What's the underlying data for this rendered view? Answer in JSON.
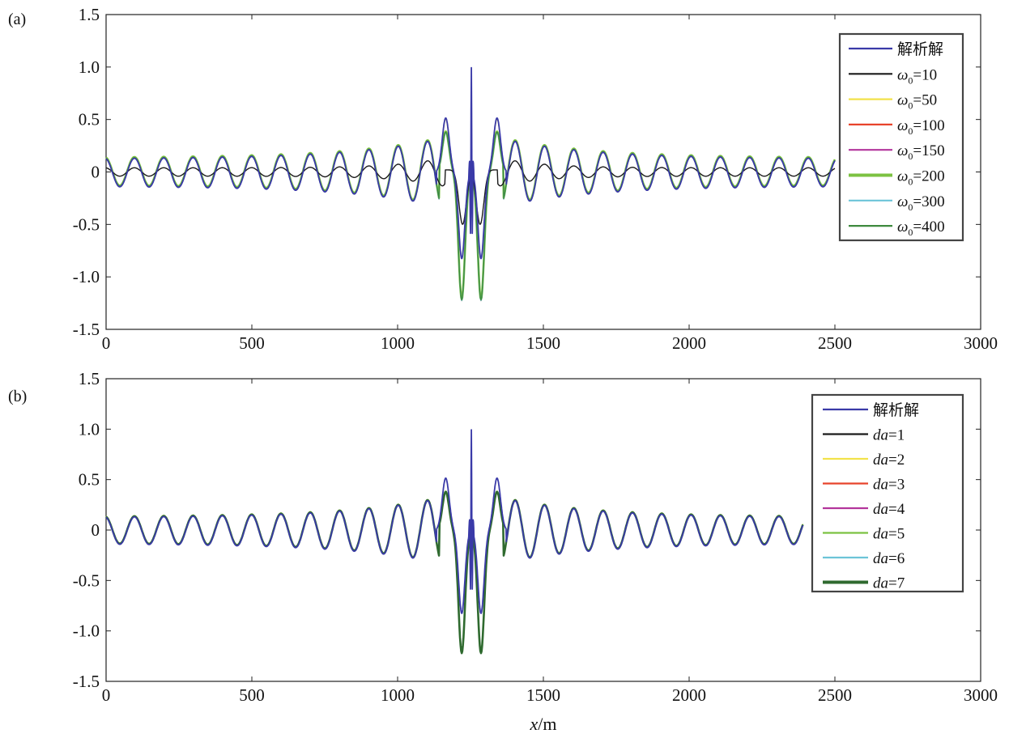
{
  "chart_data": [
    {
      "panel_label": "(a)",
      "type": "line",
      "xlim": [
        0,
        3000
      ],
      "ylim": [
        -1.5,
        1.5
      ],
      "xticks": [
        0,
        500,
        1000,
        1500,
        2000,
        2500,
        3000
      ],
      "xtick_labels": [
        "0",
        "500",
        "1000",
        "1500",
        "2000",
        "2500",
        "3000"
      ],
      "yticks": [
        1.5,
        1.0,
        0.5,
        0,
        -0.5,
        -1.0,
        -1.5
      ],
      "ytick_labels": [
        "1.5",
        "1.0",
        "0.5",
        "0",
        "-0.5",
        "-1.0",
        "-1.5"
      ],
      "xlabel": "",
      "legend_position": "top-right",
      "series": [
        {
          "name": "解析解",
          "color": "#3a3aa8",
          "kind": "analytic"
        },
        {
          "name": "ω0=10",
          "name_sym": "ω",
          "name_sub": "0",
          "name_rest": "=10",
          "color": "#1a1a1a",
          "kind": "damped",
          "amp": 0.35
        },
        {
          "name": "ω0=50",
          "name_sym": "ω",
          "name_sub": "0",
          "name_rest": "=50",
          "color": "#f2e24a",
          "kind": "deep"
        },
        {
          "name": "ω0=100",
          "name_sym": "ω",
          "name_sub": "0",
          "name_rest": "=100",
          "color": "#e8432b",
          "kind": "wave"
        },
        {
          "name": "ω0=150",
          "name_sym": "ω",
          "name_sub": "0",
          "name_rest": "=150",
          "color": "#b3359c",
          "kind": "wave"
        },
        {
          "name": "ω0=200",
          "name_sym": "ω",
          "name_sub": "0",
          "name_rest": "=200",
          "color": "#7cc242",
          "kind": "wave",
          "bold": true
        },
        {
          "name": "ω0=300",
          "name_sym": "ω",
          "name_sub": "0",
          "name_rest": "=300",
          "color": "#6cc4d8",
          "kind": "wave"
        },
        {
          "name": "ω0=400",
          "name_sym": "ω",
          "name_sub": "0",
          "name_rest": "=400",
          "color": "#3e8a3e",
          "kind": "wave"
        }
      ]
    },
    {
      "panel_label": "(b)",
      "type": "line",
      "xlim": [
        0,
        3000
      ],
      "ylim": [
        -1.5,
        1.5
      ],
      "xticks": [
        0,
        500,
        1000,
        1500,
        2000,
        2500,
        3000
      ],
      "xtick_labels": [
        "0",
        "500",
        "1000",
        "1500",
        "2000",
        "2500",
        "3000"
      ],
      "yticks": [
        1.5,
        1.0,
        0.5,
        0,
        -0.5,
        -1.0,
        -1.5
      ],
      "ytick_labels": [
        "1.5",
        "1.0",
        "0.5",
        "0",
        "-0.5",
        "-1.0",
        "-1.5"
      ],
      "xlabel": "x/m",
      "xlabel_var": "x",
      "xlabel_unit": "/m",
      "legend_position": "top-right",
      "series": [
        {
          "name": "解析解",
          "color": "#3a3aa8",
          "kind": "analytic"
        },
        {
          "name": "da=1",
          "name_sym": "da",
          "name_rest": "=1",
          "color": "#1a1a1a",
          "kind": "wave"
        },
        {
          "name": "da=2",
          "name_sym": "da",
          "name_rest": "=2",
          "color": "#f2e24a",
          "kind": "wave"
        },
        {
          "name": "da=3",
          "name_sym": "da",
          "name_rest": "=3",
          "color": "#e8432b",
          "kind": "wave"
        },
        {
          "name": "da=4",
          "name_sym": "da",
          "name_rest": "=4",
          "color": "#b3359c",
          "kind": "wave"
        },
        {
          "name": "da=5",
          "name_sym": "da",
          "name_rest": "=5",
          "color": "#7cc242",
          "kind": "wave"
        },
        {
          "name": "da=6",
          "name_sym": "da",
          "name_rest": "=6",
          "color": "#6cc4d8",
          "kind": "wave"
        },
        {
          "name": "da=7",
          "name_sym": "da",
          "name_rest": "=7",
          "color": "#2f6a2f",
          "kind": "wave",
          "bold": true
        }
      ]
    }
  ]
}
